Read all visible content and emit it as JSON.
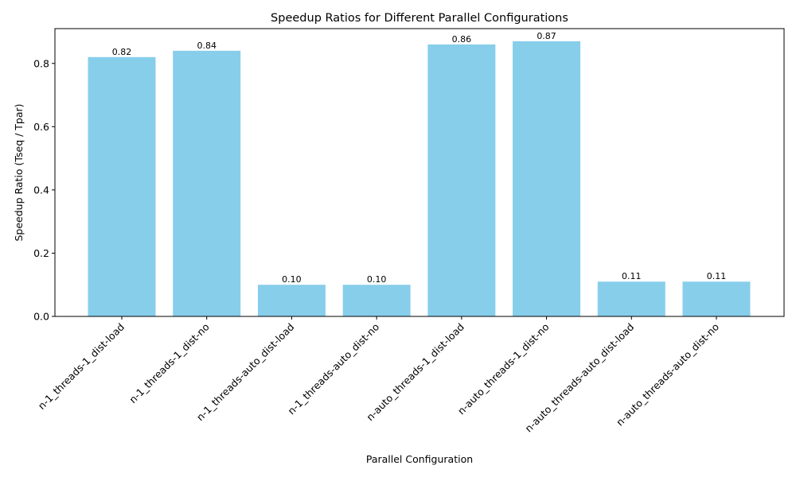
{
  "chart_data": {
    "type": "bar",
    "title": "Speedup Ratios for Different Parallel Configurations",
    "xlabel": "Parallel Configuration",
    "ylabel": "Speedup Ratio (Tseq / Tpar)",
    "categories": [
      "n-1_threads-1_dist-load",
      "n-1_threads-1_dist-no",
      "n-1_threads-auto_dist-load",
      "n-1_threads-auto_dist-no",
      "n-auto_threads-1_dist-load",
      "n-auto_threads-1_dist-no",
      "n-auto_threads-auto_dist-load",
      "n-auto_threads-auto_dist-no"
    ],
    "values": [
      0.82,
      0.84,
      0.1,
      0.1,
      0.86,
      0.87,
      0.11,
      0.11
    ],
    "value_labels": [
      "0.82",
      "0.84",
      "0.10",
      "0.10",
      "0.86",
      "0.87",
      "0.11",
      "0.11"
    ],
    "ylim": [
      0,
      0.91
    ],
    "yticks": [
      0.0,
      0.2,
      0.4,
      0.6,
      0.8
    ],
    "ytick_labels": [
      "0.0",
      "0.2",
      "0.4",
      "0.6",
      "0.8"
    ],
    "bar_color": "#87ceeb",
    "grid": false,
    "legend": "none"
  }
}
